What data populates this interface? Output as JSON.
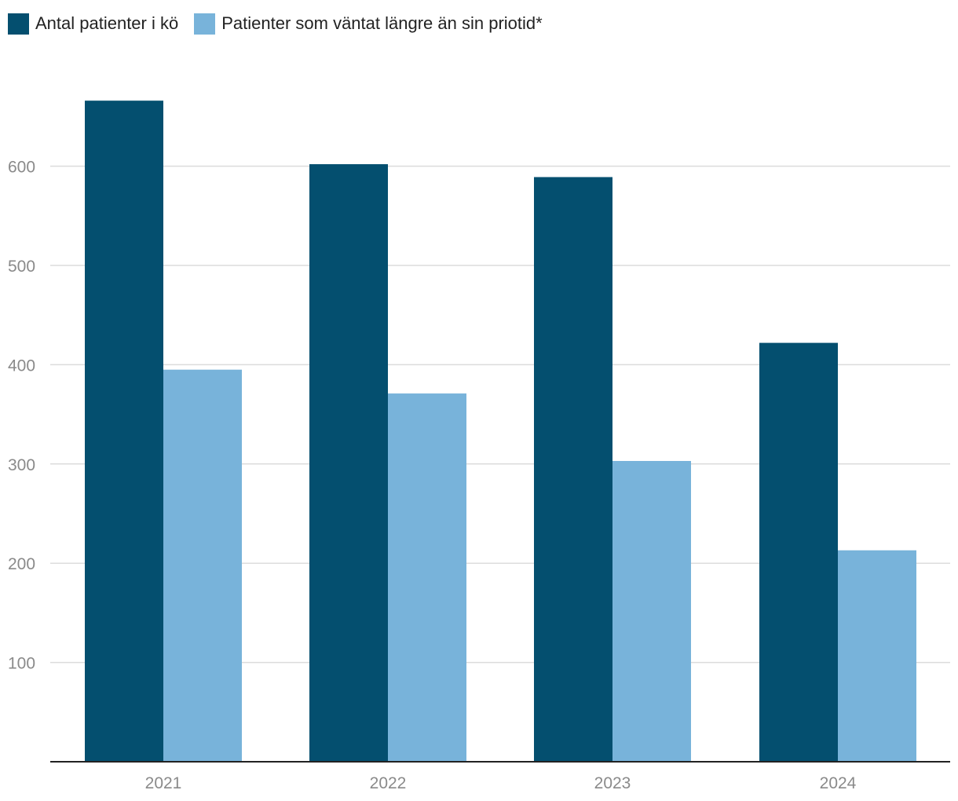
{
  "chart_data": {
    "type": "bar",
    "categories": [
      "2021",
      "2022",
      "2023",
      "2024"
    ],
    "series": [
      {
        "name": "Antal patienter i kö",
        "color": "#044f6f",
        "values": [
          666,
          602,
          589,
          422
        ]
      },
      {
        "name": "Patienter som väntat längre än sin priotid*",
        "color": "#78b3da",
        "values": [
          395,
          371,
          303,
          213
        ]
      }
    ],
    "y_ticks": [
      100,
      200,
      300,
      400,
      500,
      600
    ],
    "ylim": [
      0,
      700
    ],
    "grid": true,
    "legend_position": "top-left",
    "title": "",
    "xlabel": "",
    "ylabel": ""
  }
}
